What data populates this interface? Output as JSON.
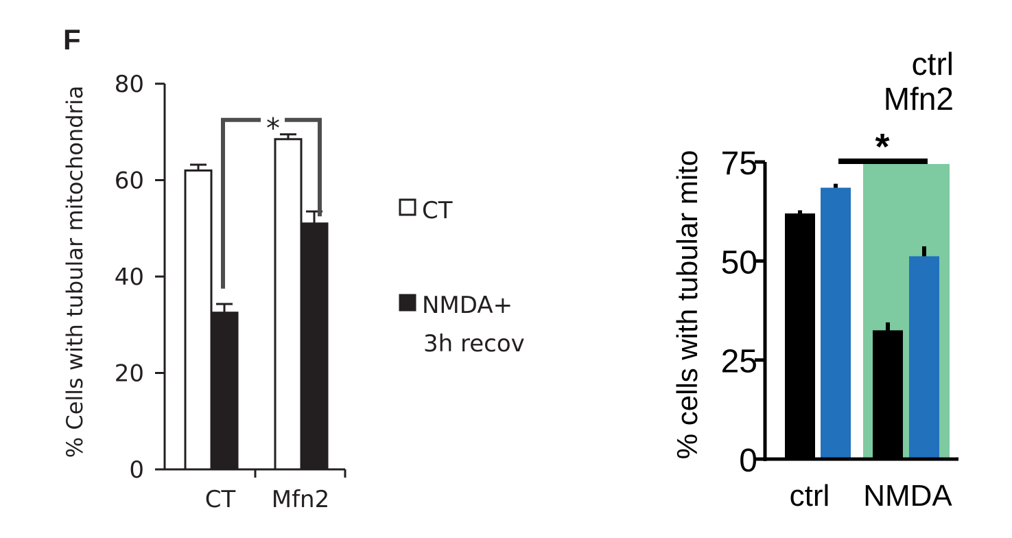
{
  "panel_label": "F",
  "chart_data": [
    {
      "type": "bar",
      "ylabel": "% Cells with tubular mitochondria",
      "ylim": [
        0,
        80
      ],
      "yticks": [
        0,
        20,
        40,
        60,
        80
      ],
      "categories": [
        "CT",
        "Mfn2"
      ],
      "series": [
        {
          "name": "CT",
          "values": [
            62,
            68.5
          ],
          "errors": [
            1.2,
            1.0
          ],
          "fill": "#ffffff",
          "stroke": "#231f20"
        },
        {
          "name": "NMDA+ 3h recov",
          "values": [
            32.5,
            51
          ],
          "errors": [
            1.8,
            2.5
          ],
          "fill": "#231f20",
          "stroke": "#231f20"
        }
      ],
      "legend": [
        "CT",
        "NMDA+",
        "3h recov"
      ],
      "legend_position": "right",
      "significance": {
        "label": "*",
        "between": [
          "CT NMDA+ 3h recov",
          "Mfn2 NMDA+ 3h recov"
        ]
      }
    },
    {
      "type": "bar",
      "ylabel": "% cells with tubular mito",
      "ylim": [
        0,
        75
      ],
      "yticks": [
        0,
        25,
        50,
        75
      ],
      "categories": [
        "ctrl",
        "NMDA"
      ],
      "category_colors": [
        "#000000",
        "#7ecaa1"
      ],
      "series": [
        {
          "name": "ctrl",
          "values": [
            62,
            32.5
          ],
          "errors": [
            0.8,
            2.0
          ],
          "color": "#000000"
        },
        {
          "name": "Mfn2",
          "values": [
            68.5,
            51.2
          ],
          "errors": [
            1.0,
            2.5
          ],
          "color": "#2171bd"
        }
      ],
      "legend": [
        "ctrl",
        "Mfn2"
      ],
      "legend_colors": [
        "#000000",
        "#2171bd"
      ],
      "legend_position": "top-right",
      "highlight_color": "#7ecaa1",
      "significance": {
        "label": "*"
      }
    }
  ]
}
